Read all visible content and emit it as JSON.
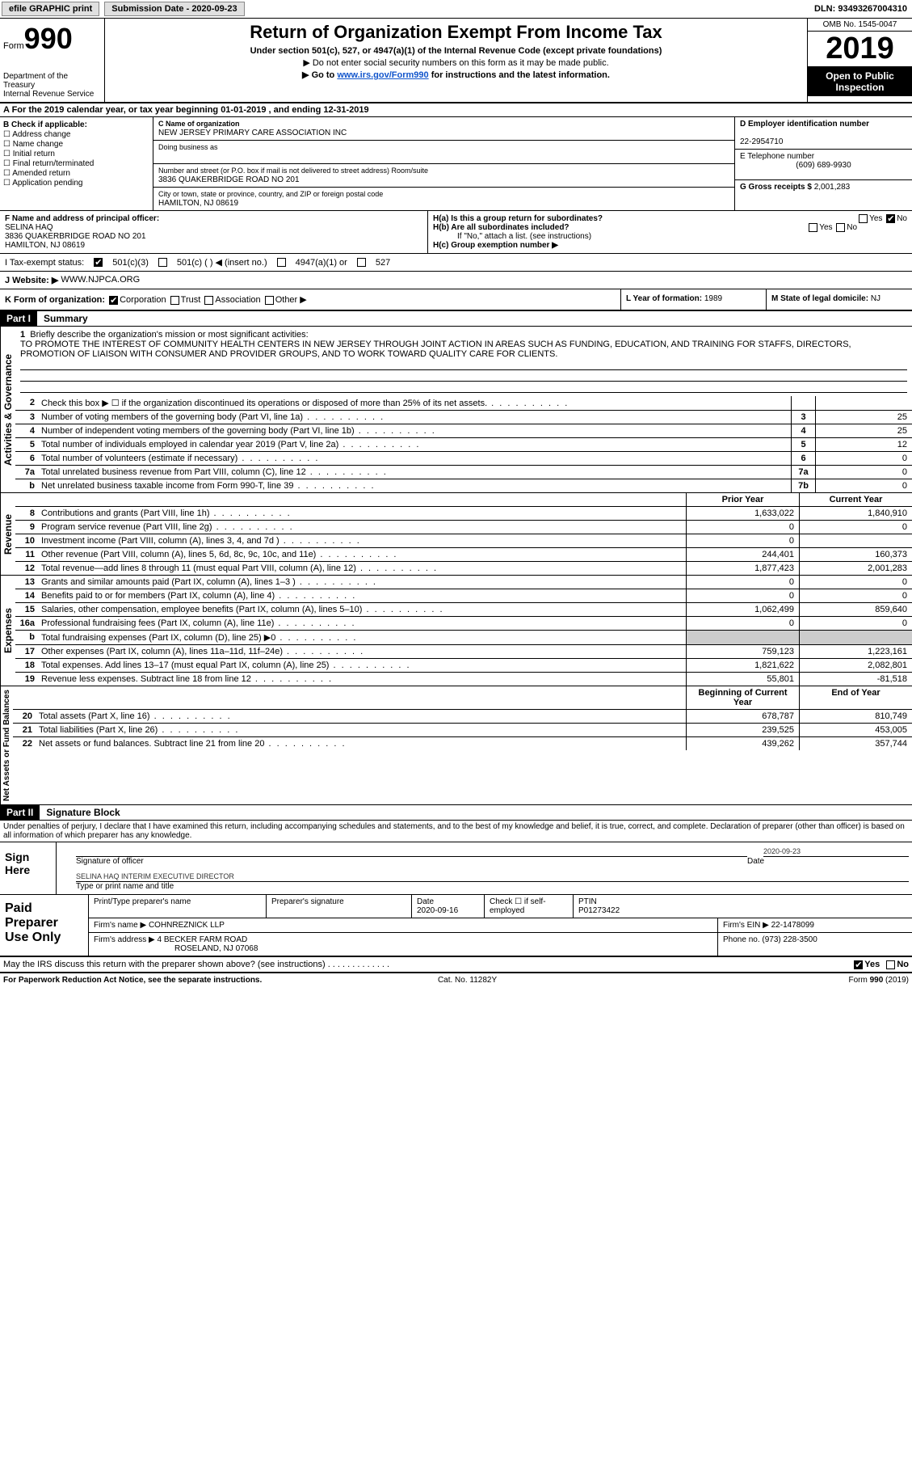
{
  "topbar": {
    "efile": "efile GRAPHIC print",
    "sub_label": "Submission Date - 2020-09-23",
    "dln": "DLN: 93493267004310"
  },
  "header": {
    "form_word": "Form",
    "form_num": "990",
    "dept": "Department of the Treasury\nInternal Revenue Service",
    "title": "Return of Organization Exempt From Income Tax",
    "sub1": "Under section 501(c), 527, or 4947(a)(1) of the Internal Revenue Code (except private foundations)",
    "sub2": "▶ Do not enter social security numbers on this form as it may be made public.",
    "sub3_pre": "▶ Go to ",
    "sub3_link": "www.irs.gov/Form990",
    "sub3_post": " for instructions and the latest information.",
    "omb": "OMB No. 1545-0047",
    "year": "2019",
    "inspect": "Open to Public Inspection"
  },
  "line_a": "A For the 2019 calendar year, or tax year beginning 01-01-2019   , and ending 12-31-2019",
  "box_b": {
    "title": "B Check if applicable:",
    "items": [
      "Address change",
      "Name change",
      "Initial return",
      "Final return/terminated",
      "Amended return",
      "Application pending"
    ]
  },
  "box_c": {
    "name_lbl": "C Name of organization",
    "name": "NEW JERSEY PRIMARY CARE ASSOCIATION INC",
    "dba_lbl": "Doing business as",
    "dba": "",
    "addr_lbl": "Number and street (or P.O. box if mail is not delivered to street address)      Room/suite",
    "addr": "3836 QUAKERBRIDGE ROAD NO 201",
    "city_lbl": "City or town, state or province, country, and ZIP or foreign postal code",
    "city": "HAMILTON, NJ  08619"
  },
  "box_d": {
    "lbl": "D Employer identification number",
    "val": "22-2954710"
  },
  "box_e": {
    "lbl": "E Telephone number",
    "val": "(609) 689-9930"
  },
  "box_g": {
    "lbl": "G Gross receipts $",
    "val": "2,001,283"
  },
  "box_f": {
    "lbl": "F  Name and address of principal officer:",
    "name": "SELINA HAQ",
    "addr1": "3836 QUAKERBRIDGE ROAD NO 201",
    "addr2": "HAMILTON, NJ  08619"
  },
  "box_h": {
    "a": "H(a)  Is this a group return for subordinates?",
    "a_yes": "Yes",
    "a_no": "No",
    "b": "H(b)  Are all subordinates included?",
    "b_yes": "Yes",
    "b_no": "No",
    "note": "If \"No,\" attach a list. (see instructions)",
    "c": "H(c)  Group exemption number ▶"
  },
  "row_i": {
    "lbl": "I    Tax-exempt status:",
    "o1": "501(c)(3)",
    "o2": "501(c) (  ) ◀ (insert no.)",
    "o3": "4947(a)(1) or",
    "o4": "527"
  },
  "row_j": {
    "lbl": "J   Website: ▶",
    "val": "WWW.NJPCA.ORG"
  },
  "row_k": {
    "lbl": "K Form of organization:",
    "o1": "Corporation",
    "o2": "Trust",
    "o3": "Association",
    "o4": "Other ▶"
  },
  "row_l": {
    "lbl": "L Year of formation:",
    "val": "1989"
  },
  "row_m": {
    "lbl": "M State of legal domicile:",
    "val": "NJ"
  },
  "part1": {
    "hdr": "Part I",
    "title": "Summary"
  },
  "mission": {
    "num": "1",
    "lbl": "Briefly describe the organization's mission or most significant activities:",
    "txt": "TO PROMOTE THE INTEREST OF COMMUNITY HEALTH CENTERS IN NEW JERSEY THROUGH JOINT ACTION IN AREAS SUCH AS FUNDING, EDUCATION, AND TRAINING FOR STAFFS, DIRECTORS, PROMOTION OF LIAISON WITH CONSUMER AND PROVIDER GROUPS, AND TO WORK TOWARD QUALITY CARE FOR CLIENTS."
  },
  "gov_lines": [
    {
      "n": "2",
      "t": "Check this box ▶ ☐  if the organization discontinued its operations or disposed of more than 25% of its net assets.",
      "b": "",
      "v": ""
    },
    {
      "n": "3",
      "t": "Number of voting members of the governing body (Part VI, line 1a)",
      "b": "3",
      "v": "25"
    },
    {
      "n": "4",
      "t": "Number of independent voting members of the governing body (Part VI, line 1b)",
      "b": "4",
      "v": "25"
    },
    {
      "n": "5",
      "t": "Total number of individuals employed in calendar year 2019 (Part V, line 2a)",
      "b": "5",
      "v": "12"
    },
    {
      "n": "6",
      "t": "Total number of volunteers (estimate if necessary)",
      "b": "6",
      "v": "0"
    },
    {
      "n": "7a",
      "t": "Total unrelated business revenue from Part VIII, column (C), line 12",
      "b": "7a",
      "v": "0"
    },
    {
      "n": "b",
      "t": "Net unrelated business taxable income from Form 990-T, line 39",
      "b": "7b",
      "v": "0"
    }
  ],
  "col_hdrs": {
    "prior": "Prior Year",
    "current": "Current Year"
  },
  "rev_lines": [
    {
      "n": "8",
      "t": "Contributions and grants (Part VIII, line 1h)",
      "p": "1,633,022",
      "c": "1,840,910"
    },
    {
      "n": "9",
      "t": "Program service revenue (Part VIII, line 2g)",
      "p": "0",
      "c": "0"
    },
    {
      "n": "10",
      "t": "Investment income (Part VIII, column (A), lines 3, 4, and 7d )",
      "p": "0",
      "c": ""
    },
    {
      "n": "11",
      "t": "Other revenue (Part VIII, column (A), lines 5, 6d, 8c, 9c, 10c, and 11e)",
      "p": "244,401",
      "c": "160,373"
    },
    {
      "n": "12",
      "t": "Total revenue—add lines 8 through 11 (must equal Part VIII, column (A), line 12)",
      "p": "1,877,423",
      "c": "2,001,283"
    }
  ],
  "exp_lines": [
    {
      "n": "13",
      "t": "Grants and similar amounts paid (Part IX, column (A), lines 1–3 )",
      "p": "0",
      "c": "0"
    },
    {
      "n": "14",
      "t": "Benefits paid to or for members (Part IX, column (A), line 4)",
      "p": "0",
      "c": "0"
    },
    {
      "n": "15",
      "t": "Salaries, other compensation, employee benefits (Part IX, column (A), lines 5–10)",
      "p": "1,062,499",
      "c": "859,640"
    },
    {
      "n": "16a",
      "t": "Professional fundraising fees (Part IX, column (A), line 11e)",
      "p": "0",
      "c": "0"
    },
    {
      "n": "b",
      "t": "Total fundraising expenses (Part IX, column (D), line 25) ▶0",
      "p": "",
      "c": "",
      "shade": true
    },
    {
      "n": "17",
      "t": "Other expenses (Part IX, column (A), lines 11a–11d, 11f–24e)",
      "p": "759,123",
      "c": "1,223,161"
    },
    {
      "n": "18",
      "t": "Total expenses. Add lines 13–17 (must equal Part IX, column (A), line 25)",
      "p": "1,821,622",
      "c": "2,082,801"
    },
    {
      "n": "19",
      "t": "Revenue less expenses. Subtract line 18 from line 12",
      "p": "55,801",
      "c": "-81,518"
    }
  ],
  "net_hdrs": {
    "beg": "Beginning of Current Year",
    "end": "End of Year"
  },
  "net_lines": [
    {
      "n": "20",
      "t": "Total assets (Part X, line 16)",
      "p": "678,787",
      "c": "810,749"
    },
    {
      "n": "21",
      "t": "Total liabilities (Part X, line 26)",
      "p": "239,525",
      "c": "453,005"
    },
    {
      "n": "22",
      "t": "Net assets or fund balances. Subtract line 21 from line 20",
      "p": "439,262",
      "c": "357,744"
    }
  ],
  "vtabs": {
    "gov": "Activities & Governance",
    "rev": "Revenue",
    "exp": "Expenses",
    "net": "Net Assets or Fund Balances"
  },
  "part2": {
    "hdr": "Part II",
    "title": "Signature Block"
  },
  "sig": {
    "decl": "Under penalties of perjury, I declare that I have examined this return, including accompanying schedules and statements, and to the best of my knowledge and belief, it is true, correct, and complete. Declaration of preparer (other than officer) is based on all information of which preparer has any knowledge.",
    "here": "Sign Here",
    "sig_lbl": "Signature of officer",
    "date_lbl": "Date",
    "date": "2020-09-23",
    "name": "SELINA HAQ  INTERIM EXECUTIVE DIRECTOR",
    "name_lbl": "Type or print name and title"
  },
  "paid": {
    "lbl": "Paid Preparer Use Only",
    "h1": "Print/Type preparer's name",
    "h2": "Preparer's signature",
    "h3": "Date",
    "h3v": "2020-09-16",
    "h4": "Check ☐ if self-employed",
    "h5": "PTIN",
    "h5v": "P01273422",
    "firm_lbl": "Firm's name    ▶",
    "firm": "COHNREZNICK LLP",
    "ein_lbl": "Firm's EIN ▶",
    "ein": "22-1478099",
    "addr_lbl": "Firm's address ▶",
    "addr1": "4 BECKER FARM ROAD",
    "addr2": "ROSELAND, NJ  07068",
    "phone_lbl": "Phone no.",
    "phone": "(973) 228-3500"
  },
  "discuss": {
    "txt": "May the IRS discuss this return with the preparer shown above? (see instructions)",
    "yes": "Yes",
    "no": "No"
  },
  "foot": {
    "l": "For Paperwork Reduction Act Notice, see the separate instructions.",
    "m": "Cat. No. 11282Y",
    "r": "Form 990 (2019)"
  }
}
